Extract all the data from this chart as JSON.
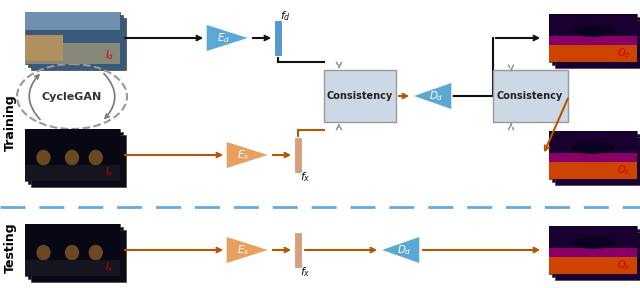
{
  "bg_color": "#ffffff",
  "black": "#111111",
  "orange": "#b85500",
  "blue_enc": "#5ba8d4",
  "orange_enc": "#e8a060",
  "blue_bar": "#5599cc",
  "orange_bar": "#d4a080",
  "consist_fill": "#ccd8e4",
  "consist_edge": "#999999",
  "dash_arrow": "#999999",
  "dash_line": "#66aadd",
  "red_label": "#cc0000",
  "training_label": "Training",
  "testing_label": "Testing",
  "cyclegan_label": "CycleGAN"
}
